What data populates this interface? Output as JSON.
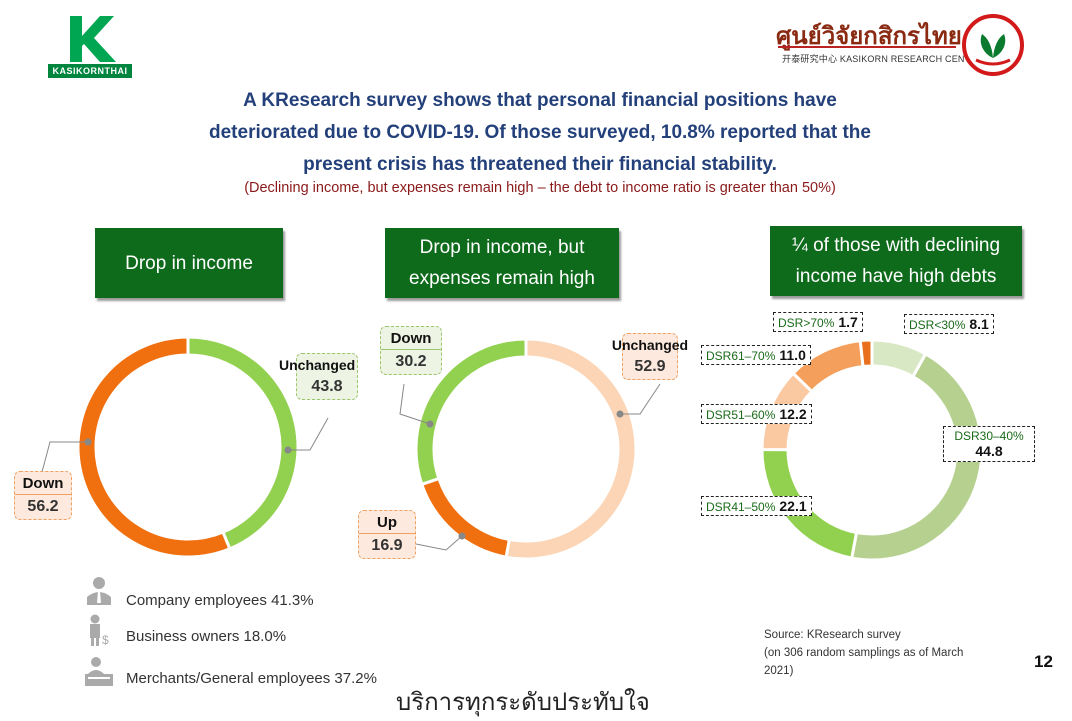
{
  "header": {
    "left_logo_text": "KASIKORNTHAI",
    "center_logo_thai": "ศูนย์วิจัยกสิกรไทย",
    "center_logo_sub": "开泰研究中心 KASIKORN RESEARCH CENTER"
  },
  "headline": {
    "line1": "A KResearch survey shows that personal financial positions have",
    "line2": "deteriorated due to COVID-19. Of those surveyed, 10.8% reported that the",
    "line3": "present crisis has threatened their financial stability.",
    "subtitle": "(Declining income, but expenses remain high – the debt to income ratio is greater than 50%)"
  },
  "panels": {
    "p1_title": "Drop in income",
    "p2_title_l1": "Drop in income, but",
    "p2_title_l2": "expenses remain high",
    "p3_title_l1": "¼ of those with declining",
    "p3_title_l2": "income have high debts"
  },
  "chart_data": [
    {
      "type": "pie",
      "title": "Drop in income",
      "categories": [
        "Unchanged",
        "Down"
      ],
      "values": [
        43.8,
        56.2
      ],
      "colors": [
        "#92d050",
        "#f07010"
      ]
    },
    {
      "type": "pie",
      "title": "Drop in income, but expenses remain high",
      "categories": [
        "Unchanged",
        "Up",
        "Down"
      ],
      "values": [
        52.9,
        16.9,
        30.2
      ],
      "colors": [
        "#fbd5b5",
        "#f07010",
        "#92d050"
      ]
    },
    {
      "type": "pie",
      "title": "¼ of those with declining income have high debts",
      "categories": [
        "DSR<30%",
        "DSR30–40%",
        "DSR41–50%",
        "DSR51–60%",
        "DSR61–70%",
        "DSR>70%"
      ],
      "values": [
        8.1,
        44.8,
        22.1,
        12.2,
        11.0,
        1.7
      ],
      "colors": [
        "#d8e8c4",
        "#b5d08f",
        "#92d050",
        "#fbc9a1",
        "#f4a05c",
        "#e8701e"
      ]
    }
  ],
  "labels": {
    "c1_unchanged": "Unchanged",
    "c1_unchanged_v": "43.8",
    "c1_down": "Down",
    "c1_down_v": "56.2",
    "c2_down": "Down",
    "c2_down_v": "30.2",
    "c2_unchanged": "Unchanged",
    "c2_unchanged_v": "52.9",
    "c2_up": "Up",
    "c2_up_v": "16.9",
    "c3_gt70": "DSR>70%",
    "c3_gt70_v": "1.7",
    "c3_lt30": "DSR<30%",
    "c3_lt30_v": "8.1",
    "c3_61_70": "DSR61–70%",
    "c3_61_70_v": "11.0",
    "c3_51_60": "DSR51–60%",
    "c3_51_60_v": "12.2",
    "c3_30_40": "DSR30–40%",
    "c3_30_40_v": "44.8",
    "c3_41_50": "DSR41–50%",
    "c3_41_50_v": "22.1"
  },
  "occupations": [
    {
      "label": "Company employees 41.3%",
      "icon": "employee-icon"
    },
    {
      "label": "Business owners 18.0%",
      "icon": "business-owner-icon"
    },
    {
      "label": "Merchants/General employees 37.2%",
      "icon": "merchant-icon"
    }
  ],
  "source": {
    "line1": "Source: KResearch survey",
    "line2": "(on 306 random samplings as of March",
    "line3": "2021)"
  },
  "page_number": "12",
  "footer_thai": "บริการทุกระดับประทับใจ"
}
